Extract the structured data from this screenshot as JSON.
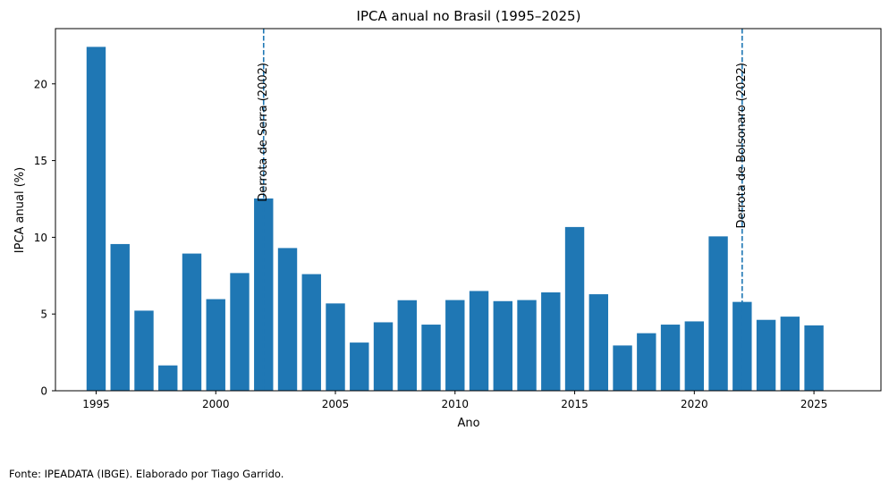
{
  "chart_data": {
    "type": "bar",
    "title": "IPCA anual no Brasil (1995–2025)",
    "xlabel": "Ano",
    "ylabel": "IPCA anual (%)",
    "categories": [
      1995,
      1996,
      1997,
      1998,
      1999,
      2000,
      2001,
      2002,
      2003,
      2004,
      2005,
      2006,
      2007,
      2008,
      2009,
      2010,
      2011,
      2012,
      2013,
      2014,
      2015,
      2016,
      2017,
      2018,
      2019,
      2020,
      2021,
      2022,
      2023,
      2024,
      2025
    ],
    "values": [
      22.41,
      9.56,
      5.22,
      1.65,
      8.94,
      5.97,
      7.67,
      12.53,
      9.3,
      7.6,
      5.69,
      3.14,
      4.46,
      5.9,
      4.31,
      5.91,
      6.5,
      5.84,
      5.91,
      6.41,
      10.67,
      6.29,
      2.95,
      3.75,
      4.31,
      4.52,
      10.06,
      5.79,
      4.62,
      4.83,
      4.26
    ],
    "color": "#1f77b4",
    "xlim": [
      1993.3,
      2027.8
    ],
    "ylim": [
      0,
      23.6
    ],
    "xticks": [
      1995,
      2000,
      2005,
      2010,
      2015,
      2020,
      2025
    ],
    "yticks": [
      0,
      5,
      10,
      15,
      20
    ],
    "annotations": [
      {
        "x": 2002,
        "label": "Derrota de Serra (2002)",
        "line_color": "#1f77b4",
        "line_style": "dashed"
      },
      {
        "x": 2022,
        "label": "Derrota de Bolsonaro (2022)",
        "line_color": "#1f77b4",
        "line_style": "dashed"
      }
    ],
    "grid": false,
    "legend": "none"
  },
  "footer": "Fonte: IPEADATA (IBGE). Elaborado por Tiago Garrido."
}
